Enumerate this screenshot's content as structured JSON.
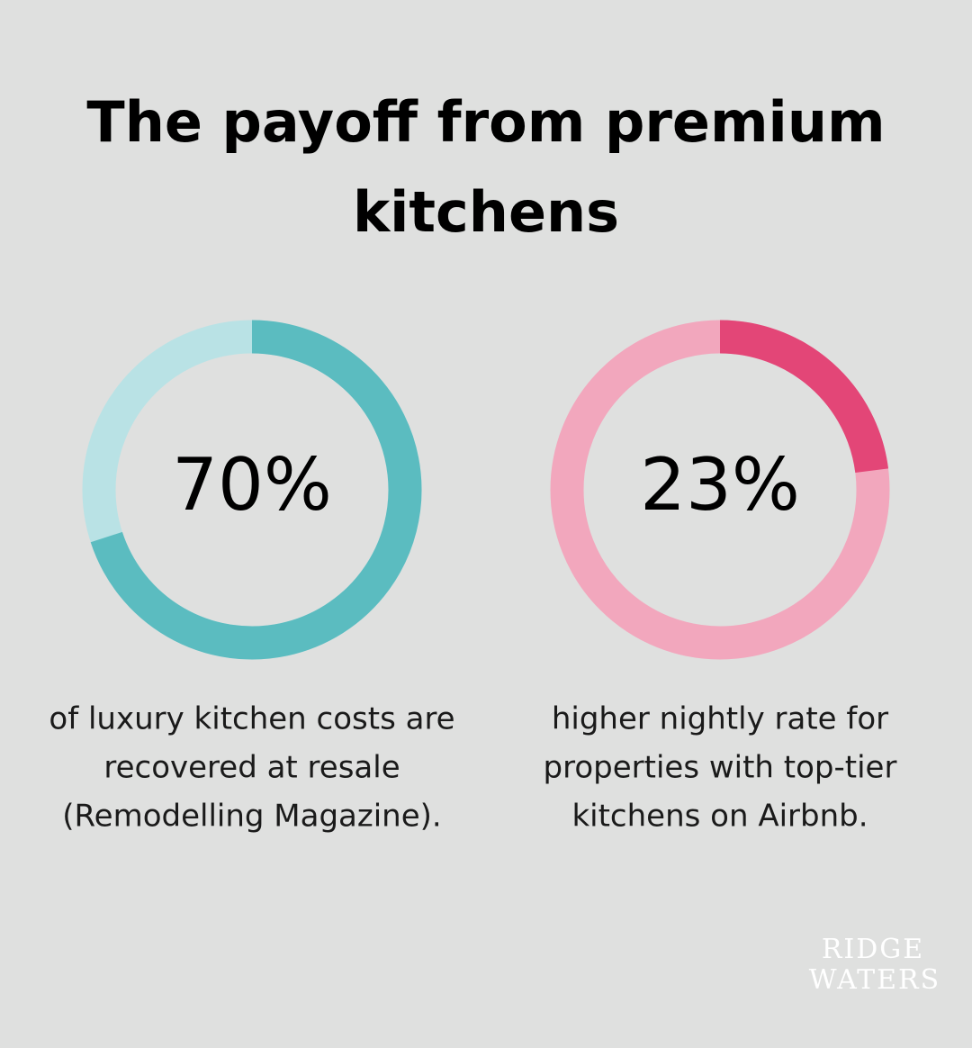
{
  "title": [
    "The payoff from premium",
    "kitchens"
  ],
  "chart_data": [
    {
      "type": "donut",
      "values": [
        70
      ],
      "value_labels": [
        "70%"
      ],
      "max": 100,
      "color": "#5bbcc0",
      "track_color": "#b9e2e5",
      "caption": [
        "of luxury kitchen costs are",
        "recovered at resale",
        "(Remodelling Magazine)."
      ]
    },
    {
      "type": "donut",
      "values": [
        23
      ],
      "value_labels": [
        "23%"
      ],
      "max": 100,
      "color": "#e34677",
      "track_color": "#f2a7bd",
      "caption": [
        "higher nightly rate for",
        "properties with top-tier",
        "kitchens on Airbnb."
      ]
    }
  ],
  "logo": [
    "RIDGE",
    "WATERS"
  ]
}
